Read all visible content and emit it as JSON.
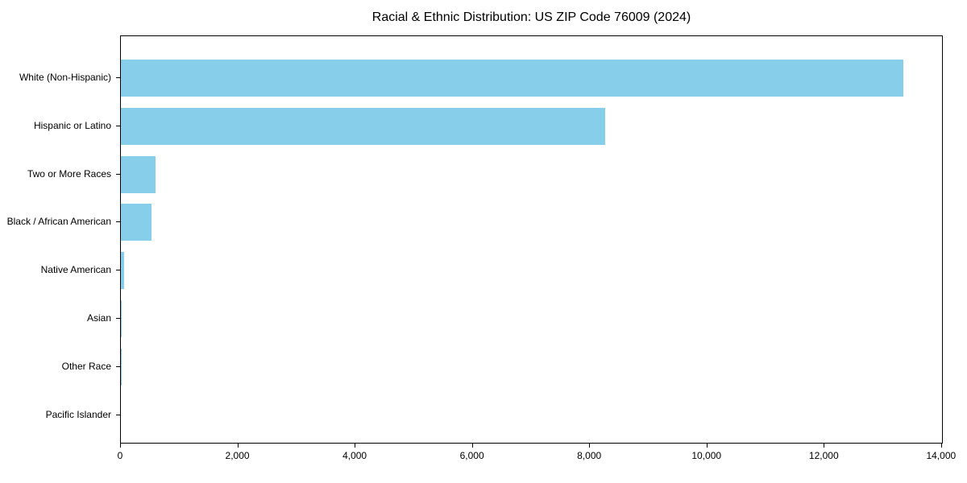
{
  "title": "Racial & Ethnic Distribution: US ZIP Code 76009 (2024)",
  "chart_data": {
    "type": "bar",
    "orientation": "horizontal",
    "title": "Racial & Ethnic Distribution: US ZIP Code 76009 (2024)",
    "categories": [
      "White (Non-Hispanic)",
      "Hispanic or Latino",
      "Two or More Races",
      "Black / African American",
      "Native American",
      "Asian",
      "Other Race",
      "Pacific Islander"
    ],
    "values": [
      13370,
      8270,
      590,
      530,
      60,
      15,
      5,
      0
    ],
    "xlabel": "",
    "ylabel": "",
    "xlim": [
      0,
      14030
    ],
    "xticks": [
      0,
      2000,
      4000,
      6000,
      8000,
      10000,
      12000,
      14000
    ],
    "xtick_labels": [
      "0",
      "2,000",
      "4,000",
      "6,000",
      "8,000",
      "10,000",
      "12,000",
      "14,000"
    ],
    "bar_color": "#87CEEB",
    "grid": false,
    "legend": null
  }
}
